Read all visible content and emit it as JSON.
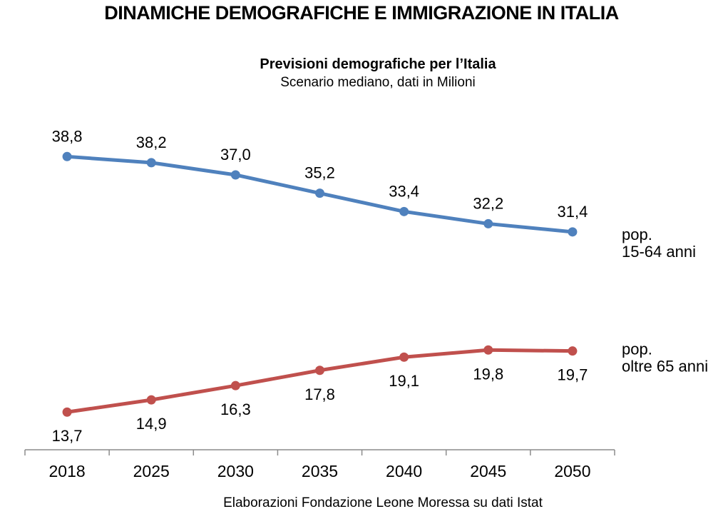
{
  "page": {
    "title": "DINAMICHE DEMOGRAFICHE E IMMIGRAZIONE IN ITALIA",
    "footer": "Elaborazioni Fondazione Leone Moressa su dati Istat"
  },
  "chart_data": {
    "type": "line",
    "title": "Previsioni demografiche per l’Italia",
    "subtitle": "Scenario mediano, dati in Milioni",
    "categories": [
      "2018",
      "2025",
      "2030",
      "2035",
      "2040",
      "2045",
      "2050"
    ],
    "series": [
      {
        "name": "pop. 15-64 anni",
        "legend_lines": [
          "pop.",
          "15-64 anni"
        ],
        "color": "#4F81BD",
        "values": [
          38.8,
          38.2,
          37.0,
          35.2,
          33.4,
          32.2,
          31.4
        ],
        "labels": [
          "38,8",
          "38,2",
          "37,0",
          "35,2",
          "33,4",
          "32,2",
          "31,4"
        ],
        "label_position": "above"
      },
      {
        "name": "pop. oltre 65 anni",
        "legend_lines": [
          "pop.",
          "oltre 65 anni"
        ],
        "color": "#C0504D",
        "values": [
          13.7,
          14.9,
          16.3,
          17.8,
          19.1,
          19.8,
          19.7
        ],
        "labels": [
          "13,7",
          "14,9",
          "16,3",
          "17,8",
          "19,1",
          "19,8",
          "19,7"
        ],
        "label_position": "below"
      }
    ],
    "ylim": [
      10,
      42
    ],
    "grid": false,
    "legend_position": "right",
    "axis_color": "#8C8C8C",
    "text_color": "#000000"
  }
}
